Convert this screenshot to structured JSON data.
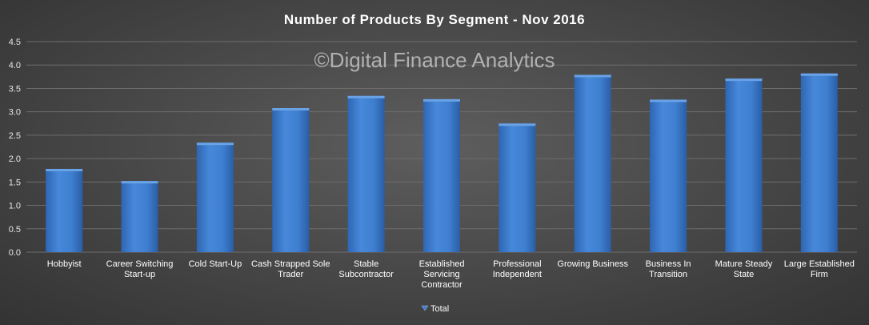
{
  "chart_data": {
    "type": "bar",
    "title": "Number of Products  By Segment - Nov 2016",
    "watermark": "©Digital Finance Analytics",
    "categories": [
      [
        "Hobbyist"
      ],
      [
        "Career Switching",
        "Start-up"
      ],
      [
        "Cold Start-Up"
      ],
      [
        "Cash Strapped Sole",
        "Trader"
      ],
      [
        "Stable",
        "Subcontractor"
      ],
      [
        "Established",
        "Servicing",
        "Contractor"
      ],
      [
        "Professional",
        "Independent"
      ],
      [
        "Growing Business"
      ],
      [
        "Business In",
        "Transition"
      ],
      [
        "Mature Steady",
        "State"
      ],
      [
        "Large Established",
        "Firm"
      ]
    ],
    "series": [
      {
        "name": "Total",
        "values": [
          1.78,
          1.52,
          2.34,
          3.08,
          3.34,
          3.27,
          2.75,
          3.79,
          3.26,
          3.71,
          3.82
        ]
      }
    ],
    "ylim": [
      0,
      4.5
    ],
    "yticks": [
      "0.0",
      "0.5",
      "1.0",
      "1.5",
      "2.0",
      "2.5",
      "3.0",
      "3.5",
      "4.0",
      "4.5"
    ],
    "grid": true,
    "legend_position": "bottom",
    "colors": {
      "bar": "#3f7fd0",
      "bar_dark": "#2b5fa8",
      "bar_light": "#6aa2e6"
    }
  }
}
